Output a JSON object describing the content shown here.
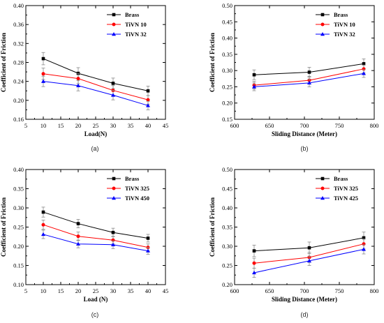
{
  "chart_data": [
    {
      "panel": "(a)",
      "type": "line",
      "xlabel": "Load(N)",
      "ylabel": "Coefficient of Friction",
      "xlim": [
        5,
        45
      ],
      "ylim": [
        0.16,
        0.4
      ],
      "xticks": [
        "5",
        "10",
        "15",
        "20",
        "25",
        "30",
        "35",
        "40",
        "45"
      ],
      "yticks": [
        "0.16",
        "0.20",
        "0.24",
        "0.28",
        "0.32",
        "0.36",
        "0.40"
      ],
      "legend_position": "top-right",
      "x": [
        10,
        20,
        30,
        40
      ],
      "series": [
        {
          "name": "Brass",
          "color": "#000000",
          "marker": "square",
          "values": [
            0.288,
            0.257,
            0.236,
            0.22
          ],
          "error": [
            0.013,
            0.012,
            0.011,
            0.01
          ]
        },
        {
          "name": "TiVN 10",
          "color": "#ff0000",
          "marker": "circle",
          "values": [
            0.256,
            0.246,
            0.221,
            0.201
          ],
          "error": [
            0.012,
            0.011,
            0.01,
            0.009
          ]
        },
        {
          "name": "TiVN 32",
          "color": "#0000ff",
          "marker": "triangle",
          "values": [
            0.24,
            0.231,
            0.211,
            0.189
          ],
          "error": [
            0.011,
            0.011,
            0.01,
            0.009
          ]
        }
      ]
    },
    {
      "panel": "(b)",
      "type": "line",
      "xlabel": "Sliding Distance (Meter)",
      "ylabel": "Coefficient of Friction",
      "xlim": [
        600,
        800
      ],
      "ylim": [
        0.15,
        0.5
      ],
      "xticks": [
        "600",
        "650",
        "700",
        "750",
        "800"
      ],
      "yticks": [
        "0.15",
        "0.20",
        "0.25",
        "0.30",
        "0.35",
        "0.40",
        "0.45",
        "0.50"
      ],
      "legend_position": "top-right",
      "x": [
        628,
        707,
        785
      ],
      "series": [
        {
          "name": "Brass",
          "color": "#000000",
          "marker": "square",
          "values": [
            0.287,
            0.295,
            0.321
          ],
          "error": [
            0.015,
            0.015,
            0.015
          ]
        },
        {
          "name": "TiVN 10",
          "color": "#ff0000",
          "marker": "circle",
          "values": [
            0.255,
            0.27,
            0.305
          ],
          "error": [
            0.012,
            0.012,
            0.012
          ]
        },
        {
          "name": "TiVN 32",
          "color": "#0000ff",
          "marker": "triangle",
          "values": [
            0.25,
            0.262,
            0.291
          ],
          "error": [
            0.012,
            0.012,
            0.012
          ]
        }
      ]
    },
    {
      "panel": "(c)",
      "type": "line",
      "xlabel": "Load (N)",
      "ylabel": "Coefficient of Friction",
      "xlim": [
        5,
        45
      ],
      "ylim": [
        0.1,
        0.4
      ],
      "xticks": [
        "5",
        "10",
        "15",
        "20",
        "25",
        "30",
        "35",
        "40",
        "45"
      ],
      "yticks": [
        "0.10",
        "0.15",
        "0.20",
        "0.25",
        "0.30",
        "0.35",
        "0.40"
      ],
      "legend_position": "top-right",
      "x": [
        10,
        20,
        30,
        40
      ],
      "series": [
        {
          "name": "Brass",
          "color": "#000000",
          "marker": "square",
          "values": [
            0.289,
            0.259,
            0.236,
            0.221
          ],
          "error": [
            0.013,
            0.011,
            0.011,
            0.01
          ]
        },
        {
          "name": "TiVN 325",
          "color": "#ff0000",
          "marker": "circle",
          "values": [
            0.256,
            0.226,
            0.216,
            0.197
          ],
          "error": [
            0.012,
            0.011,
            0.01,
            0.009
          ]
        },
        {
          "name": "TiVN 450",
          "color": "#0000ff",
          "marker": "triangle",
          "values": [
            0.231,
            0.206,
            0.204,
            0.188
          ],
          "error": [
            0.011,
            0.01,
            0.01,
            0.009
          ]
        }
      ]
    },
    {
      "panel": "(d)",
      "type": "line",
      "xlabel": "Sliding Distance (Meter)",
      "ylabel": "Coefficient of Friction",
      "xlim": [
        600,
        800
      ],
      "ylim": [
        0.2,
        0.5
      ],
      "xticks": [
        "600",
        "650",
        "700",
        "750",
        "800"
      ],
      "yticks": [
        "0.20",
        "0.25",
        "0.30",
        "0.35",
        "0.40",
        "0.45",
        "0.50"
      ],
      "legend_position": "top-right",
      "x": [
        628,
        707,
        785
      ],
      "series": [
        {
          "name": "Brass",
          "color": "#000000",
          "marker": "square",
          "values": [
            0.288,
            0.296,
            0.322
          ],
          "error": [
            0.015,
            0.015,
            0.015
          ]
        },
        {
          "name": "TiVN 325",
          "color": "#ff0000",
          "marker": "circle",
          "values": [
            0.256,
            0.271,
            0.306
          ],
          "error": [
            0.013,
            0.013,
            0.013
          ]
        },
        {
          "name": "TiVN 425",
          "color": "#0000ff",
          "marker": "triangle",
          "values": [
            0.231,
            0.262,
            0.292
          ],
          "error": [
            0.012,
            0.012,
            0.012
          ]
        }
      ]
    }
  ]
}
